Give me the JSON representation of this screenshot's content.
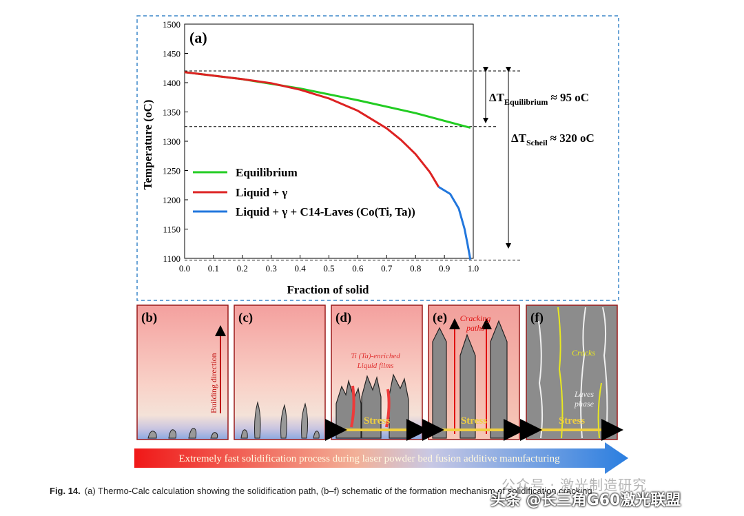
{
  "chart_data": {
    "type": "line",
    "panel_label": "(a)",
    "xlabel": "Fraction of solid",
    "ylabel": "Temperature (oC)",
    "xlim": [
      0.0,
      1.0
    ],
    "ylim": [
      1100,
      1500
    ],
    "xticks": [
      "0.0",
      "0.1",
      "0.2",
      "0.3",
      "0.4",
      "0.5",
      "0.6",
      "0.7",
      "0.8",
      "0.9",
      "1.0"
    ],
    "yticks": [
      "1100",
      "1150",
      "1200",
      "1250",
      "1300",
      "1350",
      "1400",
      "1450",
      "1500"
    ],
    "series": [
      {
        "name": "Equilibrium",
        "color": "#22cc22",
        "x": [
          0.0,
          0.2,
          0.4,
          0.6,
          0.8,
          0.99
        ],
        "y": [
          1418,
          1406,
          1390,
          1370,
          1348,
          1323
        ]
      },
      {
        "name": "Liquid + γ",
        "color": "#dd2222",
        "x": [
          0.0,
          0.2,
          0.3,
          0.4,
          0.5,
          0.6,
          0.7,
          0.75,
          0.8,
          0.85,
          0.88
        ],
        "y": [
          1418,
          1406,
          1399,
          1388,
          1373,
          1352,
          1322,
          1302,
          1278,
          1247,
          1222
        ]
      },
      {
        "name": "Liquid + γ + C14-Laves (Co(Ti, Ta))",
        "color": "#2277dd",
        "x": [
          0.88,
          0.92,
          0.95,
          0.97,
          0.98,
          0.99
        ],
        "y": [
          1222,
          1210,
          1185,
          1150,
          1125,
          1098
        ]
      }
    ],
    "annotations": {
      "delta_eq_main": "ΔT",
      "delta_eq_sub": "Equilibrium",
      "delta_eq_value": "≈ 95 oC",
      "delta_scheil_main": "ΔT",
      "delta_scheil_sub": "Scheil",
      "delta_scheil_value": "≈ 320 oC",
      "dashed_levels": [
        1420,
        1325,
        1097
      ]
    }
  },
  "panels": [
    {
      "label": "(b)",
      "text": "Building direction"
    },
    {
      "label": "(c)"
    },
    {
      "label": "(d)",
      "text1": "Ti (Ta)-enriched",
      "text2": "Liquid films",
      "stress": "Stress"
    },
    {
      "label": "(e)",
      "text1": "Cracking",
      "text2": "paths",
      "stress": "Stress"
    },
    {
      "label": "(f)",
      "text1": "Cracks",
      "text2": "Laves",
      "text3": "phase",
      "stress": "Stress"
    }
  ],
  "arrow_text": "Extremely fast solidification process during laser powder bed fusion additive manufacturing",
  "caption": {
    "label": "Fig. 14.",
    "text": "(a) Thermo-Calc calculation showing the solidification path, (b–f) schematic of the formation mechanism of solidification cracking."
  },
  "watermark": "公众号 · 激光制造研究",
  "watermark2": "头条 @长三角G60激光联盟"
}
